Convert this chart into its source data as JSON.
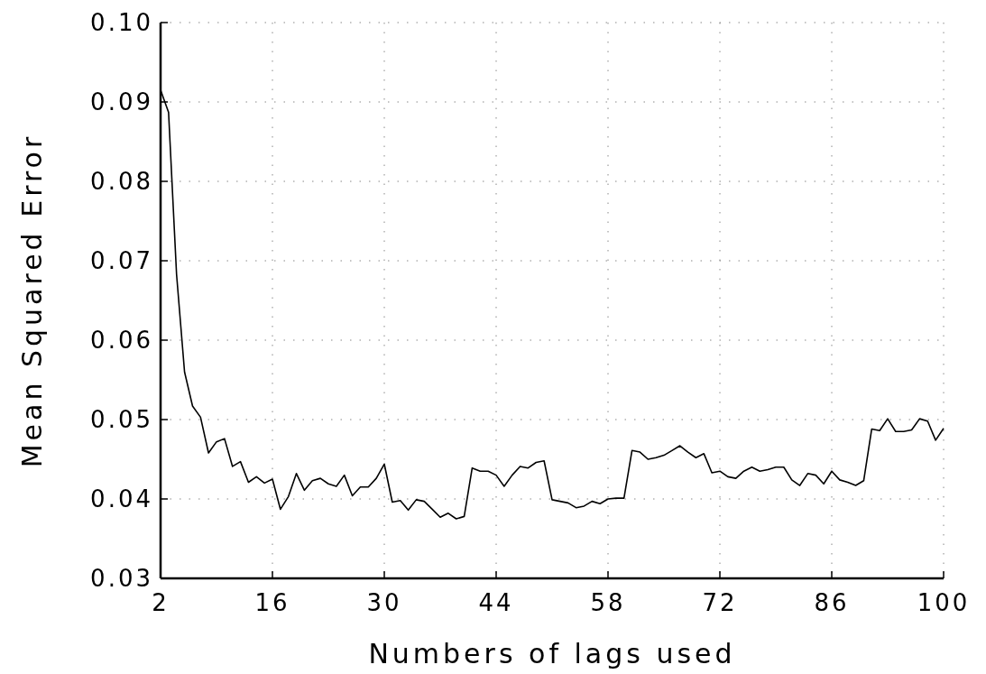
{
  "chart_data": {
    "type": "line",
    "xlabel": "Numbers of lags used",
    "ylabel": "Mean Squared Error",
    "x": [
      2,
      3,
      4,
      5,
      6,
      7,
      8,
      9,
      10,
      11,
      12,
      13,
      14,
      15,
      16,
      17,
      18,
      19,
      20,
      21,
      22,
      23,
      24,
      25,
      26,
      27,
      28,
      29,
      30,
      31,
      32,
      33,
      34,
      35,
      36,
      37,
      38,
      39,
      40,
      41,
      42,
      43,
      44,
      45,
      46,
      47,
      48,
      49,
      50,
      51,
      52,
      53,
      54,
      55,
      56,
      57,
      58,
      59,
      60,
      61,
      62,
      63,
      64,
      65,
      66,
      67,
      68,
      69,
      70,
      71,
      72,
      73,
      74,
      75,
      76,
      77,
      78,
      79,
      80,
      81,
      82,
      83,
      84,
      85,
      86,
      87,
      88,
      89,
      90,
      91,
      92,
      93,
      94,
      95,
      96,
      97,
      98,
      99,
      100
    ],
    "series": [
      {
        "color": "#000000",
        "values": [
          0.0915,
          0.0887,
          0.0683,
          0.056,
          0.0517,
          0.0503,
          0.0458,
          0.0472,
          0.0476,
          0.0441,
          0.0447,
          0.0421,
          0.0428,
          0.042,
          0.0425,
          0.0387,
          0.0403,
          0.0432,
          0.0411,
          0.0423,
          0.0426,
          0.0419,
          0.0416,
          0.043,
          0.0404,
          0.0415,
          0.0415,
          0.0426,
          0.0444,
          0.0396,
          0.0398,
          0.0386,
          0.0399,
          0.0397,
          0.0387,
          0.0377,
          0.0382,
          0.0375,
          0.0378,
          0.0439,
          0.0435,
          0.0435,
          0.043,
          0.0416,
          0.043,
          0.0441,
          0.0439,
          0.0446,
          0.0448,
          0.0399,
          0.0397,
          0.0395,
          0.0389,
          0.0391,
          0.0397,
          0.0394,
          0.04,
          0.0401,
          0.0401,
          0.0461,
          0.0459,
          0.045,
          0.0452,
          0.0455,
          0.0461,
          0.0467,
          0.0459,
          0.0452,
          0.0457,
          0.0433,
          0.0435,
          0.0428,
          0.0426,
          0.0435,
          0.044,
          0.0435,
          0.0437,
          0.044,
          0.044,
          0.0424,
          0.0417,
          0.0432,
          0.043,
          0.0419,
          0.0435,
          0.0424,
          0.0421,
          0.0417,
          0.0423,
          0.0488,
          0.0486,
          0.0501,
          0.0485,
          0.0485,
          0.0487,
          0.0501,
          0.0498,
          0.0474,
          0.0489
        ]
      }
    ],
    "xlim": [
      2,
      100
    ],
    "xticks": [
      2,
      16,
      30,
      44,
      58,
      72,
      86,
      100
    ],
    "ylim": [
      0.03,
      0.1
    ],
    "yticks": [
      {
        "value": 0.03,
        "label": "0.03"
      },
      {
        "value": 0.04,
        "label": "0.04"
      },
      {
        "value": 0.05,
        "label": "0.05"
      },
      {
        "value": 0.06,
        "label": "0.06"
      },
      {
        "value": 0.07,
        "label": "0.07"
      },
      {
        "value": 0.08,
        "label": "0.08"
      },
      {
        "value": 0.09,
        "label": "0.09"
      },
      {
        "value": 0.1,
        "label": "0.10"
      }
    ],
    "grid": true,
    "marker": "none",
    "line_style": "solid"
  }
}
